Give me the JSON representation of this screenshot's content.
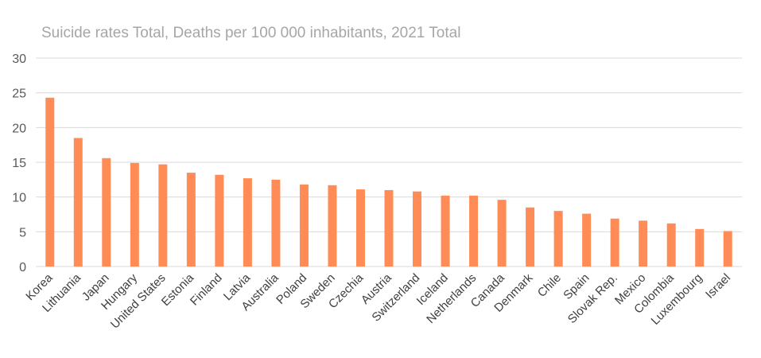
{
  "chart_data": {
    "type": "bar",
    "title": "Suicide rates Total, Deaths per 100 000 inhabitants, 2021 Total",
    "xlabel": "",
    "ylabel": "",
    "ylim": [
      0,
      30
    ],
    "yticks": [
      0,
      5,
      10,
      15,
      20,
      25,
      30
    ],
    "grid": true,
    "bar_color": "#ff8c56",
    "categories": [
      "Korea",
      "Lithuania",
      "Japan",
      "Hungary",
      "United States",
      "Estonia",
      "Finland",
      "Latvia",
      "Australia",
      "Poland",
      "Sweden",
      "Czechia",
      "Austria",
      "Switzerland",
      "Iceland",
      "Netherlands",
      "Canada",
      "Denmark",
      "Chile",
      "Spain",
      "Slovak Rep.",
      "Mexico",
      "Colombia",
      "Luxembourg",
      "Israel"
    ],
    "values": [
      24.3,
      18.5,
      15.6,
      14.9,
      14.7,
      13.5,
      13.2,
      12.7,
      12.5,
      11.8,
      11.7,
      11.1,
      11.0,
      10.8,
      10.2,
      10.2,
      9.6,
      8.5,
      8.0,
      7.6,
      6.9,
      6.6,
      6.2,
      5.4,
      5.1
    ]
  }
}
